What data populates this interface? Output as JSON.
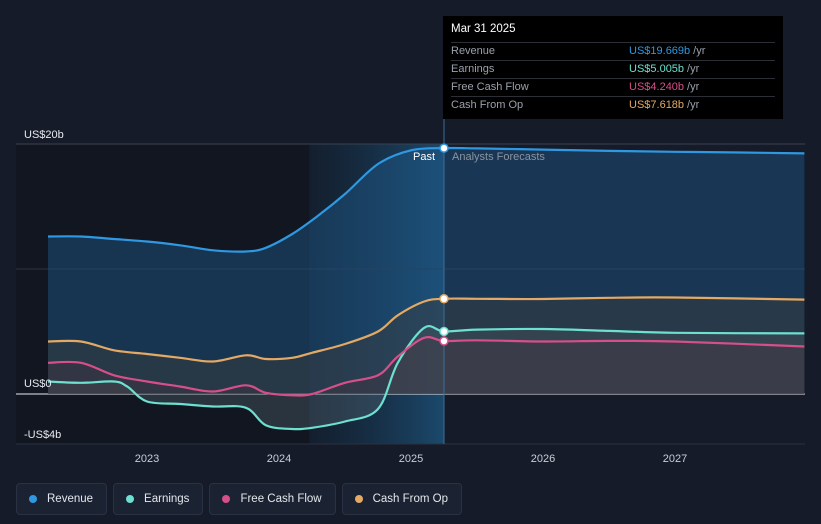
{
  "chart_data": {
    "type": "line",
    "y_axis_labels": [
      "US$20b",
      "US$0",
      "-US$4b"
    ],
    "ylim": [
      -4,
      20
    ],
    "x_ticks": [
      2023,
      2024,
      2025,
      2026,
      2027
    ],
    "xlim": [
      2022.25,
      2027.98
    ],
    "divider_x": 2025.25,
    "past_label": "Past",
    "forecast_label": "Analysts Forecasts",
    "series": [
      {
        "name": "Revenue",
        "color": "#2f98e2",
        "points": [
          [
            2022.25,
            12.6
          ],
          [
            2022.5,
            12.6
          ],
          [
            2022.75,
            12.4
          ],
          [
            2023.0,
            12.2
          ],
          [
            2023.25,
            11.9
          ],
          [
            2023.5,
            11.5
          ],
          [
            2023.75,
            11.4
          ],
          [
            2023.9,
            11.7
          ],
          [
            2024.1,
            12.8
          ],
          [
            2024.3,
            14.3
          ],
          [
            2024.5,
            16.0
          ],
          [
            2024.75,
            18.4
          ],
          [
            2025.0,
            19.5
          ],
          [
            2025.25,
            19.669
          ],
          [
            2025.5,
            19.65
          ],
          [
            2026.0,
            19.55
          ],
          [
            2026.5,
            19.45
          ],
          [
            2027.0,
            19.38
          ],
          [
            2027.5,
            19.32
          ],
          [
            2027.98,
            19.25
          ]
        ]
      },
      {
        "name": "Earnings",
        "color": "#6de0cf",
        "points": [
          [
            2022.25,
            1.0
          ],
          [
            2022.5,
            0.9
          ],
          [
            2022.75,
            1.0
          ],
          [
            2022.85,
            0.6
          ],
          [
            2023.0,
            -0.6
          ],
          [
            2023.25,
            -0.8
          ],
          [
            2023.5,
            -1.0
          ],
          [
            2023.75,
            -1.1
          ],
          [
            2023.9,
            -2.5
          ],
          [
            2024.1,
            -2.8
          ],
          [
            2024.25,
            -2.7
          ],
          [
            2024.5,
            -2.2
          ],
          [
            2024.75,
            -1.2
          ],
          [
            2024.9,
            2.5
          ],
          [
            2025.1,
            5.3
          ],
          [
            2025.25,
            5.005
          ],
          [
            2025.5,
            5.15
          ],
          [
            2026.0,
            5.2
          ],
          [
            2026.5,
            5.05
          ],
          [
            2027.0,
            4.9
          ],
          [
            2027.98,
            4.85
          ]
        ]
      },
      {
        "name": "Free Cash Flow",
        "color": "#d74f8a",
        "points": [
          [
            2022.25,
            2.5
          ],
          [
            2022.5,
            2.5
          ],
          [
            2022.75,
            1.5
          ],
          [
            2023.0,
            1.0
          ],
          [
            2023.25,
            0.6
          ],
          [
            2023.5,
            0.2
          ],
          [
            2023.75,
            0.7
          ],
          [
            2023.9,
            0.1
          ],
          [
            2024.1,
            -0.1
          ],
          [
            2024.25,
            0.0
          ],
          [
            2024.5,
            0.9
          ],
          [
            2024.75,
            1.5
          ],
          [
            2024.9,
            3.0
          ],
          [
            2025.1,
            4.5
          ],
          [
            2025.25,
            4.24
          ],
          [
            2025.5,
            4.3
          ],
          [
            2026.0,
            4.2
          ],
          [
            2026.5,
            4.25
          ],
          [
            2027.0,
            4.2
          ],
          [
            2027.98,
            3.8
          ]
        ]
      },
      {
        "name": "Cash From Op",
        "color": "#e4a964",
        "points": [
          [
            2022.25,
            4.2
          ],
          [
            2022.5,
            4.2
          ],
          [
            2022.75,
            3.5
          ],
          [
            2023.0,
            3.2
          ],
          [
            2023.25,
            2.9
          ],
          [
            2023.5,
            2.6
          ],
          [
            2023.75,
            3.1
          ],
          [
            2023.9,
            2.8
          ],
          [
            2024.1,
            2.9
          ],
          [
            2024.25,
            3.3
          ],
          [
            2024.5,
            4.0
          ],
          [
            2024.75,
            5.0
          ],
          [
            2024.9,
            6.3
          ],
          [
            2025.1,
            7.4
          ],
          [
            2025.25,
            7.618
          ],
          [
            2025.5,
            7.62
          ],
          [
            2026.0,
            7.6
          ],
          [
            2026.5,
            7.7
          ],
          [
            2027.0,
            7.72
          ],
          [
            2027.98,
            7.55
          ]
        ]
      }
    ]
  },
  "tooltip": {
    "date": "Mar 31 2025",
    "rows": [
      {
        "label": "Revenue",
        "value": "US$19.669b",
        "unit": "/yr",
        "color": "#2f98e2"
      },
      {
        "label": "Earnings",
        "value": "US$5.005b",
        "unit": "/yr",
        "color": "#6de0cf"
      },
      {
        "label": "Free Cash Flow",
        "value": "US$4.240b",
        "unit": "/yr",
        "color": "#d74f8a"
      },
      {
        "label": "Cash From Op",
        "value": "US$7.618b",
        "unit": "/yr",
        "color": "#e4a964"
      }
    ]
  },
  "legend": [
    {
      "label": "Revenue",
      "color": "#2f98e2"
    },
    {
      "label": "Earnings",
      "color": "#6de0cf"
    },
    {
      "label": "Free Cash Flow",
      "color": "#d74f8a"
    },
    {
      "label": "Cash From Op",
      "color": "#e4a964"
    }
  ]
}
